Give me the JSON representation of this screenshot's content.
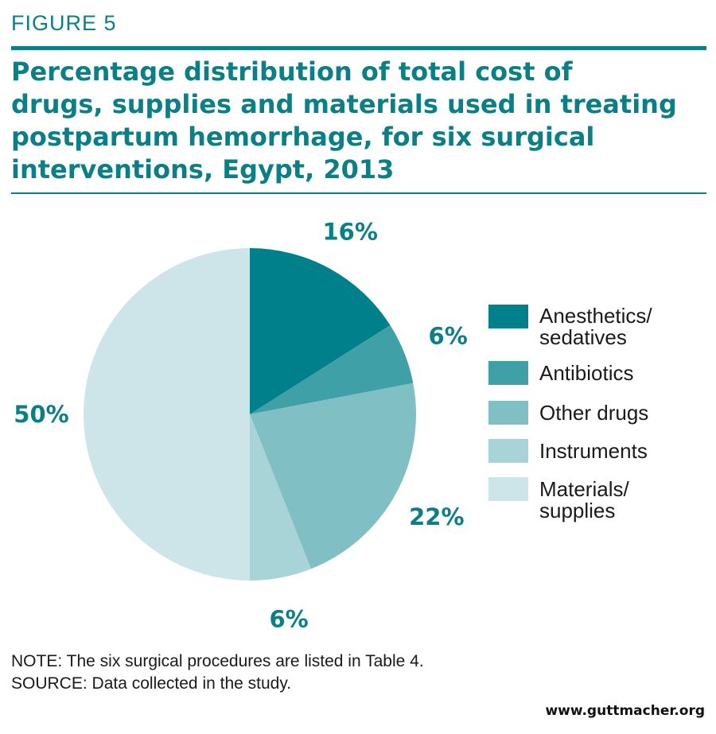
{
  "figure_label": "FIGURE 5",
  "note": {
    "prefix": "NOTE:",
    "text": "The six surgical procedures are listed in Table 4."
  },
  "source": {
    "prefix": "SOURCE:",
    "text": "Data collected in the study."
  },
  "website": "www.guttmacher.org",
  "colors": {
    "accent": "#0a7f86",
    "anesthetics": "#00808a",
    "antibiotics": "#40a0a8",
    "other_drugs": "#80c0c4",
    "instruments": "#a8d4d8",
    "materials": "#cde5e8"
  },
  "chart_data": {
    "type": "pie",
    "title": "Percentage distribution of total cost of drugs, supplies and materials used in treating postpartum hemorrhage, for six surgical interventions, Egypt, 2013",
    "title_lines": [
      "Percentage distribution of total cost of",
      "drugs, supplies and materials used in treating",
      "postpartum hemorrhage, for six surgical",
      "interventions, Egypt, 2013"
    ],
    "legend_position": "right",
    "slices": [
      {
        "key": "anesthetics",
        "legend_lines": [
          "Anesthetics/",
          "sedatives"
        ],
        "value": 16,
        "label": "16%",
        "color": "#00808a"
      },
      {
        "key": "antibiotics",
        "legend_lines": [
          "Antibiotics"
        ],
        "value": 6,
        "label": "6%",
        "color": "#40a0a8"
      },
      {
        "key": "other-drugs",
        "legend_lines": [
          "Other drugs"
        ],
        "value": 22,
        "label": "22%",
        "color": "#80c0c4"
      },
      {
        "key": "instruments",
        "legend_lines": [
          "Instruments"
        ],
        "value": 6,
        "label": "6%",
        "color": "#a8d4d8"
      },
      {
        "key": "materials",
        "legend_lines": [
          "Materials/",
          "supplies"
        ],
        "value": 50,
        "label": "50%",
        "color": "#cde5e8"
      }
    ]
  }
}
